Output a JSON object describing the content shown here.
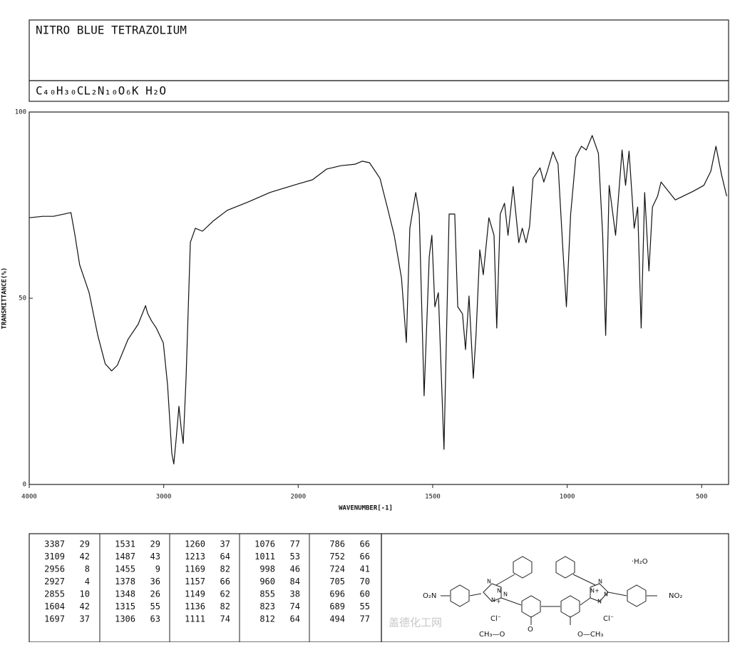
{
  "header": {
    "title": "NITRO BLUE TETRAZOLIUM",
    "formula": "C₄₀H₃₀CL₂N₁₀O₆K H₂O"
  },
  "chart_data": {
    "type": "line",
    "x_label": "WAVENUMBER[-1]",
    "y_label": "TRANSMITTANCE(%)",
    "xlim": [
      4000,
      400
    ],
    "ylim": [
      0,
      100
    ],
    "xticks": [
      4000,
      3000,
      2000,
      1500,
      1000,
      500
    ],
    "yticks": [
      0,
      50,
      100
    ],
    "x_scale_break": 2000,
    "x_scale_break_factor": 2,
    "grid": false,
    "x": [
      4000,
      3900,
      3820,
      3690,
      3660,
      3625,
      3555,
      3490,
      3435,
      3387,
      3345,
      3265,
      3190,
      3135,
      3120,
      3092,
      3055,
      3003,
      2971,
      2940,
      2925,
      2908,
      2887,
      2870,
      2855,
      2834,
      2802,
      2765,
      2712,
      2633,
      2528,
      2369,
      2211,
      2000,
      1947,
      1894,
      1841,
      1788,
      1762,
      1735,
      1696,
      1669,
      1643,
      1616,
      1598,
      1585,
      1563,
      1550,
      1532,
      1513,
      1503,
      1492,
      1479,
      1458,
      1439,
      1418,
      1407,
      1389,
      1378,
      1365,
      1349,
      1339,
      1325,
      1312,
      1291,
      1272,
      1262,
      1249,
      1233,
      1220,
      1201,
      1180,
      1167,
      1153,
      1140,
      1127,
      1101,
      1087,
      1074,
      1053,
      1034,
      1016,
      1003,
      987,
      968,
      947,
      929,
      907,
      884,
      868,
      857,
      844,
      820,
      796,
      783,
      770,
      751,
      738,
      725,
      712,
      696,
      683,
      664,
      651,
      598,
      532,
      492,
      466,
      447,
      426,
      407
    ],
    "series": [
      {
        "color": "#111111",
        "values": [
          71.6,
          72,
          72,
          73,
          67,
          59,
          51.5,
          40,
          32.4,
          30.5,
          32,
          39,
          43,
          48,
          46,
          44,
          42,
          38,
          26.6,
          8.4,
          5.5,
          12,
          21,
          15,
          11,
          28.5,
          65,
          68.8,
          68,
          70.7,
          73.6,
          75.9,
          78.4,
          80.7,
          81.8,
          84.7,
          85.6,
          86,
          86.8,
          86.4,
          82.2,
          74.5,
          66.9,
          55.4,
          38.1,
          68.8,
          78.4,
          72.6,
          23.8,
          61.1,
          66.9,
          47.7,
          51.5,
          9.4,
          72.6,
          72.6,
          47.7,
          45.8,
          36.2,
          50.6,
          28.5,
          40,
          63,
          56.3,
          71.6,
          66.9,
          42,
          72.6,
          75.5,
          66.9,
          80,
          64.9,
          68.8,
          64.9,
          69.2,
          82.2,
          85,
          81.2,
          84.1,
          89.3,
          86,
          63,
          47.7,
          72.6,
          87.9,
          90.8,
          89.8,
          93.7,
          88.9,
          66.9,
          40,
          80.3,
          66.9,
          89.8,
          80.3,
          89.5,
          68.8,
          74.5,
          42,
          78.4,
          57.3,
          74.5,
          77.4,
          81.2,
          76.4,
          78.7,
          80.3,
          84.1,
          90.8,
          83.1,
          77.4
        ]
      }
    ]
  },
  "peak_table": {
    "rows": [
      [
        3387,
        29,
        1531,
        29,
        1260,
        37,
        1076,
        77,
        786,
        66
      ],
      [
        3109,
        42,
        1487,
        43,
        1213,
        64,
        1011,
        53,
        752,
        66
      ],
      [
        2956,
        8,
        1455,
        9,
        1169,
        82,
        998,
        46,
        724,
        41
      ],
      [
        2927,
        4,
        1378,
        36,
        1157,
        66,
        960,
        84,
        705,
        70
      ],
      [
        2855,
        10,
        1348,
        26,
        1149,
        62,
        855,
        38,
        696,
        60
      ],
      [
        1604,
        42,
        1315,
        55,
        1136,
        82,
        823,
        74,
        689,
        55
      ],
      [
        1697,
        37,
        1306,
        63,
        1111,
        74,
        812,
        64,
        494,
        77
      ]
    ]
  },
  "structure": {
    "labels": [
      "O₂N",
      "N",
      "N",
      "N",
      "N",
      "+",
      "Cl⁻",
      "O",
      "CH₃—O",
      "·H₂O",
      "N",
      "N",
      "N",
      "N",
      "+",
      "Cl⁻",
      "O—CH₃",
      "NO₂"
    ]
  },
  "watermark": "盖德化工网"
}
